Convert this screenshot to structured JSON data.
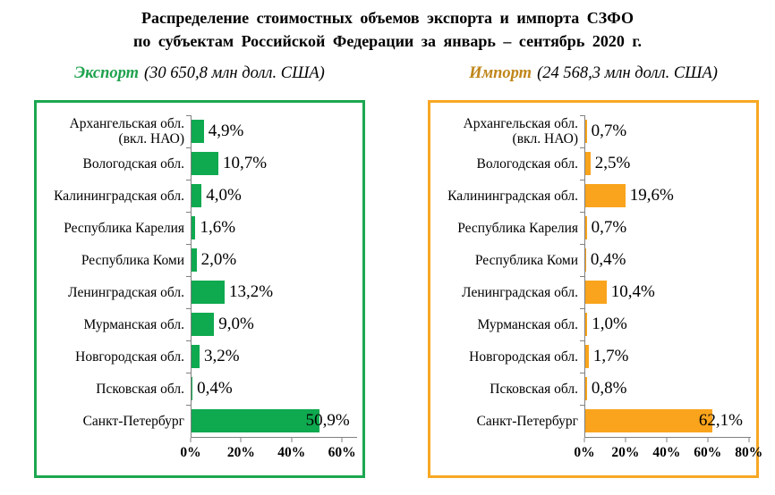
{
  "title": {
    "line1": "Распределение стоимостных объемов экспорта и импорта СЗФО",
    "line2": "по субъектам Российской Федерации за январь – сентябрь 2020 г."
  },
  "subtitles": {
    "export": {
      "name": "Экспорт",
      "detail": "(30 650,8 млн долл. США)"
    },
    "import": {
      "name": "Импорт",
      "detail": "(24 568,3 млн долл. США)"
    }
  },
  "colors": {
    "export_bar": "#0FA94F",
    "export_border": "#1CA750",
    "export_text": "#1FA24E",
    "import_bar": "#F9A41C",
    "import_border": "#F7A823",
    "import_text": "#C0861A",
    "axis": "#808080",
    "title_text": "#000000"
  },
  "chart_data": [
    {
      "type": "bar",
      "orientation": "horizontal",
      "title": "Экспорт",
      "total_note": "30 650,8 млн долл. США",
      "categories": [
        "Архангельская обл.\n(вкл. НАО)",
        "Вологодская обл.",
        "Калининградская обл.",
        "Республика Карелия",
        "Республика Коми",
        "Ленинградская обл.",
        "Мурманская обл.",
        "Новгородская обл.",
        "Псковская обл.",
        "Санкт-Петербург"
      ],
      "values": [
        4.9,
        10.7,
        4.0,
        1.6,
        2.0,
        13.2,
        9.0,
        3.2,
        0.4,
        50.9
      ],
      "value_labels": [
        "4,9%",
        "10,7%",
        "4,0%",
        "1,6%",
        "2,0%",
        "13,2%",
        "9,0%",
        "3,2%",
        "0,4%",
        "50,9%"
      ],
      "xticks": [
        "0%",
        "20%",
        "40%",
        "60%"
      ],
      "xtick_values": [
        0,
        20,
        40,
        60
      ],
      "axis_max": 66,
      "grid": false,
      "bar_color": "#0FA94F",
      "border_color": "#1CA750"
    },
    {
      "type": "bar",
      "orientation": "horizontal",
      "title": "Импорт",
      "total_note": "24 568,3 млн долл. США",
      "categories": [
        "Архангельская обл.\n(вкл. НАО)",
        "Вологодская обл.",
        "Калининградская обл.",
        "Республика Карелия",
        "Республика Коми",
        "Ленинградская обл.",
        "Мурманская обл.",
        "Новгородская обл.",
        "Псковская обл.",
        "Санкт-Петербург"
      ],
      "values": [
        0.7,
        2.5,
        19.6,
        0.7,
        0.4,
        10.4,
        1.0,
        1.7,
        0.8,
        62.1
      ],
      "value_labels": [
        "0,7%",
        "2,5%",
        "19,6%",
        "0,7%",
        "0,4%",
        "10,4%",
        "1,0%",
        "1,7%",
        "0,8%",
        "62,1%"
      ],
      "xticks": [
        "0%",
        "20%",
        "40%",
        "60%",
        "80%"
      ],
      "xtick_values": [
        0,
        20,
        40,
        60,
        80
      ],
      "axis_max": 81,
      "grid": false,
      "bar_color": "#F9A41C",
      "border_color": "#F7A823"
    }
  ]
}
